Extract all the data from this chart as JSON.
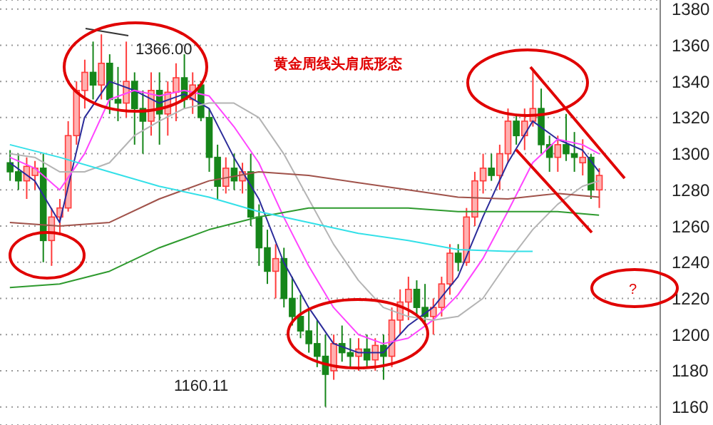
{
  "chart_data": {
    "type": "candlestick",
    "title": "黄金周线头肩底形态",
    "categories": [
      null,
      null,
      null,
      null,
      null,
      null,
      null,
      null,
      null,
      null,
      null,
      null,
      null,
      null,
      null,
      null,
      null,
      null,
      null,
      null,
      null,
      null,
      null,
      null,
      null,
      null,
      null,
      null,
      null,
      null,
      null,
      null,
      null,
      null,
      null,
      null,
      null,
      null,
      null,
      null,
      null,
      null,
      null,
      null,
      null,
      null,
      null,
      null,
      null,
      null,
      null,
      null,
      null,
      null,
      null,
      null,
      null,
      null,
      null,
      null,
      null,
      null,
      null,
      null,
      null,
      null,
      null,
      null,
      null,
      null,
      null,
      null
    ],
    "ohlc": [
      [
        1295,
        1302,
        1285,
        1290
      ],
      [
        1290,
        1300,
        1280,
        1285
      ],
      [
        1285,
        1298,
        1275,
        1293
      ],
      [
        1288,
        1296,
        1280,
        1292
      ],
      [
        1292,
        1300,
        1240,
        1252
      ],
      [
        1252,
        1270,
        1238,
        1265
      ],
      [
        1265,
        1275,
        1255,
        1270
      ],
      [
        1270,
        1318,
        1268,
        1310
      ],
      [
        1310,
        1340,
        1305,
        1335
      ],
      [
        1335,
        1352,
        1325,
        1345
      ],
      [
        1345,
        1362,
        1330,
        1338
      ],
      [
        1338,
        1366,
        1330,
        1350
      ],
      [
        1350,
        1355,
        1322,
        1330
      ],
      [
        1330,
        1348,
        1318,
        1328
      ],
      [
        1328,
        1362,
        1320,
        1340
      ],
      [
        1340,
        1345,
        1305,
        1325
      ],
      [
        1325,
        1335,
        1300,
        1318
      ],
      [
        1318,
        1345,
        1310,
        1335
      ],
      [
        1335,
        1345,
        1305,
        1322
      ],
      [
        1322,
        1340,
        1310,
        1334
      ],
      [
        1334,
        1350,
        1318,
        1342
      ],
      [
        1342,
        1355,
        1325,
        1330
      ],
      [
        1330,
        1345,
        1322,
        1338
      ],
      [
        1338,
        1340,
        1318,
        1320
      ],
      [
        1320,
        1325,
        1290,
        1298
      ],
      [
        1298,
        1305,
        1275,
        1282
      ],
      [
        1282,
        1298,
        1278,
        1292
      ],
      [
        1292,
        1300,
        1280,
        1285
      ],
      [
        1285,
        1295,
        1278,
        1290
      ],
      [
        1290,
        1300,
        1260,
        1265
      ],
      [
        1265,
        1272,
        1238,
        1248
      ],
      [
        1248,
        1258,
        1228,
        1235
      ],
      [
        1235,
        1250,
        1220,
        1242
      ],
      [
        1242,
        1248,
        1215,
        1220
      ],
      [
        1220,
        1232,
        1205,
        1210
      ],
      [
        1210,
        1222,
        1198,
        1202
      ],
      [
        1202,
        1215,
        1190,
        1195
      ],
      [
        1195,
        1208,
        1182,
        1188
      ],
      [
        1188,
        1200,
        1160.11,
        1178
      ],
      [
        1180,
        1200,
        1175,
        1195
      ],
      [
        1195,
        1205,
        1185,
        1190
      ],
      [
        1190,
        1198,
        1182,
        1188
      ],
      [
        1188,
        1198,
        1180,
        1192
      ],
      [
        1192,
        1200,
        1182,
        1186
      ],
      [
        1186,
        1198,
        1180,
        1194
      ],
      [
        1194,
        1200,
        1175,
        1188
      ],
      [
        1188,
        1215,
        1182,
        1208
      ],
      [
        1208,
        1225,
        1200,
        1218
      ],
      [
        1218,
        1232,
        1208,
        1225
      ],
      [
        1225,
        1230,
        1210,
        1215
      ],
      [
        1215,
        1228,
        1205,
        1210
      ],
      [
        1210,
        1220,
        1200,
        1215
      ],
      [
        1215,
        1232,
        1210,
        1228
      ],
      [
        1228,
        1250,
        1222,
        1245
      ],
      [
        1245,
        1250,
        1235,
        1240
      ],
      [
        1240,
        1270,
        1238,
        1265
      ],
      [
        1265,
        1290,
        1260,
        1285
      ],
      [
        1285,
        1300,
        1278,
        1292
      ],
      [
        1292,
        1300,
        1285,
        1288
      ],
      [
        1288,
        1305,
        1280,
        1300
      ],
      [
        1300,
        1325,
        1295,
        1318
      ],
      [
        1318,
        1322,
        1305,
        1310
      ],
      [
        1310,
        1325,
        1302,
        1318
      ],
      [
        1318,
        1346,
        1315,
        1325
      ],
      [
        1325,
        1336,
        1300,
        1305
      ],
      [
        1305,
        1310,
        1290,
        1298
      ],
      [
        1298,
        1310,
        1290,
        1305
      ],
      [
        1305,
        1322,
        1296,
        1300
      ],
      [
        1300,
        1312,
        1290,
        1298
      ],
      [
        1295,
        1308,
        1288,
        1298
      ],
      [
        1298,
        1300,
        1275,
        1280
      ],
      [
        1280,
        1292,
        1270,
        1288
      ]
    ],
    "series": [
      {
        "type": "line",
        "color": "#2b2b9a",
        "values": [
          1295,
          null,
          null,
          1285,
          null,
          null,
          1262,
          null,
          null,
          1320,
          null,
          null,
          1340,
          null,
          null,
          1335,
          null,
          null,
          1328,
          null,
          null,
          1333,
          null,
          null,
          1325,
          null,
          null,
          1298,
          null,
          null,
          1275,
          null,
          null,
          1240,
          null,
          null,
          1215,
          null,
          null,
          1195,
          null,
          null,
          1190,
          null,
          null,
          1190,
          null,
          null,
          1205,
          null,
          null,
          1215,
          null,
          null,
          1232,
          null,
          null,
          1265,
          null,
          null,
          1295,
          null,
          null,
          1318,
          null,
          null,
          1308,
          null,
          null,
          1302,
          null,
          1290
        ]
      },
      {
        "type": "line",
        "color": "#ff44ff",
        "values": [
          1298,
          null,
          null,
          1292,
          null,
          null,
          1280,
          null,
          null,
          1300,
          null,
          null,
          1330,
          null,
          null,
          1335,
          null,
          null,
          1332,
          null,
          null,
          1335,
          null,
          null,
          1332,
          null,
          null,
          1315,
          null,
          null,
          1295,
          null,
          null,
          1265,
          null,
          null,
          1238,
          null,
          null,
          1215,
          null,
          null,
          1200,
          null,
          null,
          1195,
          null,
          null,
          1198,
          null,
          null,
          1208,
          null,
          null,
          1222,
          null,
          null,
          1242,
          null,
          null,
          1268,
          null,
          null,
          1295,
          null,
          null,
          1308,
          null,
          null,
          1305,
          null,
          1300
        ]
      },
      {
        "type": "line",
        "color": "#b4b4b4",
        "values": [
          1300,
          null,
          null,
          1298,
          null,
          null,
          1290,
          null,
          null,
          1290,
          null,
          null,
          1295,
          null,
          null,
          1310,
          null,
          null,
          1318,
          null,
          null,
          1325,
          null,
          null,
          1328,
          null,
          null,
          1328,
          null,
          null,
          1320,
          null,
          null,
          1300,
          null,
          null,
          1275,
          null,
          null,
          1250,
          null,
          null,
          1230,
          null,
          null,
          1215,
          null,
          null,
          1210,
          null,
          null,
          1208,
          null,
          null,
          1210,
          null,
          null,
          1220,
          null,
          null,
          1240,
          null,
          null,
          1258,
          null,
          null,
          1272,
          null,
          null,
          1282,
          null,
          1285
        ]
      },
      {
        "type": "line",
        "color": "#a0524a",
        "values": [
          1262,
          null,
          null,
          null,
          null,
          null,
          1260,
          null,
          null,
          null,
          null,
          null,
          1262,
          null,
          null,
          null,
          null,
          null,
          1275,
          null,
          null,
          null,
          null,
          null,
          1285,
          null,
          null,
          null,
          null,
          null,
          1290,
          null,
          null,
          null,
          null,
          null,
          1288,
          null,
          null,
          null,
          null,
          null,
          1284,
          null,
          null,
          null,
          null,
          null,
          1280,
          null,
          null,
          null,
          null,
          null,
          1276,
          null,
          null,
          null,
          null,
          null,
          1275,
          null,
          null,
          null,
          null,
          null,
          1278,
          null,
          null,
          null,
          null,
          1276
        ]
      },
      {
        "type": "line",
        "color": "#2e9a2e",
        "values": [
          1226,
          null,
          null,
          null,
          null,
          null,
          1228,
          null,
          null,
          null,
          null,
          null,
          1235,
          null,
          null,
          null,
          null,
          null,
          1248,
          null,
          null,
          null,
          null,
          null,
          1258,
          null,
          null,
          null,
          null,
          null,
          1265,
          null,
          null,
          null,
          null,
          null,
          1270,
          null,
          null,
          null,
          null,
          null,
          1270,
          null,
          null,
          null,
          null,
          null,
          1270,
          null,
          null,
          null,
          null,
          null,
          1268,
          null,
          null,
          null,
          null,
          null,
          1268,
          null,
          null,
          null,
          null,
          null,
          1268,
          null,
          null,
          null,
          null,
          1266
        ]
      },
      {
        "type": "line",
        "color": "#33e0e8",
        "values": [
          1305,
          null,
          null,
          null,
          null,
          null,
          1298,
          null,
          null,
          null,
          null,
          null,
          1290,
          null,
          null,
          null,
          null,
          null,
          1282,
          null,
          null,
          null,
          null,
          null,
          1276,
          null,
          null,
          null,
          null,
          null,
          1268,
          null,
          null,
          null,
          null,
          null,
          1262,
          null,
          null,
          null,
          null,
          null,
          1256,
          null,
          null,
          null,
          null,
          null,
          1252,
          null,
          null,
          null,
          null,
          null,
          1247,
          null,
          null,
          null,
          null,
          null,
          1246,
          null,
          null,
          1246,
          null,
          null,
          null,
          null,
          null,
          null,
          null,
          null
        ]
      }
    ],
    "ylim": [
      1150,
      1385
    ],
    "yticks": [
      1160,
      1180,
      1200,
      1220,
      1240,
      1260,
      1280,
      1300,
      1320,
      1340,
      1360,
      1380
    ],
    "grid": "y",
    "marker": "none",
    "line_style": "solid",
    "tick_labels": "y",
    "annotations": [
      "1366.00",
      "1160.11",
      "?"
    ]
  }
}
